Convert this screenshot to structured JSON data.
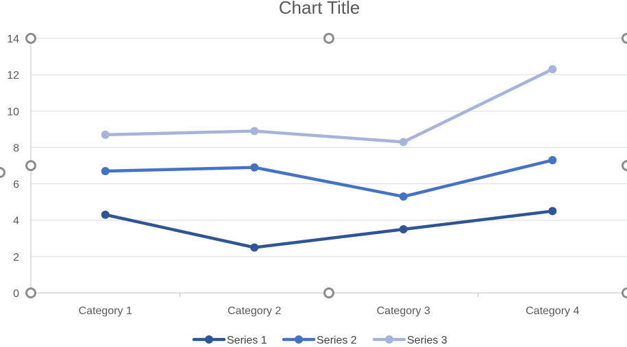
{
  "chart_data": {
    "type": "line",
    "title": "Chart Title",
    "xlabel": "",
    "ylabel": "",
    "categories": [
      "Category 1",
      "Category 2",
      "Category 3",
      "Category 4"
    ],
    "ylim": [
      0,
      14
    ],
    "yticks": [
      0,
      2,
      4,
      6,
      8,
      10,
      12,
      14
    ],
    "grid": true,
    "legend_position": "bottom",
    "series": [
      {
        "name": "Series 1",
        "values": [
          4.3,
          2.5,
          3.5,
          4.5
        ],
        "color": "#2f5597"
      },
      {
        "name": "Series 2",
        "values": [
          6.7,
          6.9,
          5.3,
          7.3
        ],
        "color": "#4472c4"
      },
      {
        "name": "Series 3",
        "values": [
          8.7,
          8.9,
          8.3,
          12.3
        ],
        "color": "#a5b4d8"
      }
    ]
  }
}
